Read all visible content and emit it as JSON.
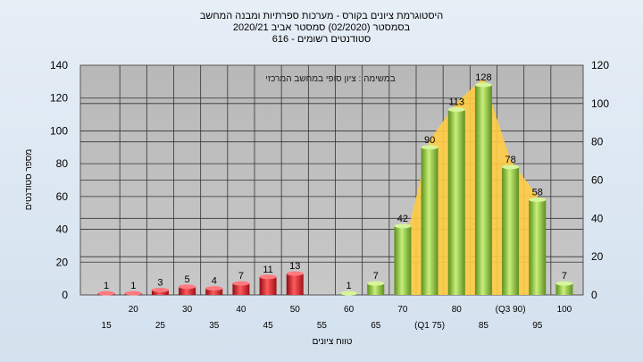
{
  "chart_data": {
    "type": "bar",
    "title_lines": [
      "היסטוגרמת ציונים בקורס - מערכות ספרתיות ומבנה המחשב",
      "בסמסטר  (02/2020)  סמסטר אביב 2020/21",
      "סטודנטים רשומים - 616"
    ],
    "inner_label": "במשימה : ציון סופי במחשב המרכזי",
    "xlabel": "טווח ציונים",
    "ylabel": "מספר סטודנטים",
    "ylim": [
      0,
      140
    ],
    "yticks": [
      0,
      20,
      40,
      60,
      80,
      100,
      120,
      140
    ],
    "right_ylim": [
      0,
      120
    ],
    "right_yticks": [
      0,
      20,
      40,
      60,
      80,
      100,
      120
    ],
    "categories": [
      "15",
      "20",
      "25",
      "30",
      "35",
      "40",
      "45",
      "50",
      "55",
      "60",
      "65",
      "70",
      "75",
      "80",
      "85",
      "90",
      "95",
      "100"
    ],
    "x_tick_labels": [
      "15",
      "20",
      "25",
      "30",
      "35",
      "40",
      "45",
      "50",
      "55",
      "60",
      "65",
      "70",
      "(Q1 75)",
      "80",
      "85",
      "(Q3 90)",
      "95",
      "100"
    ],
    "values": [
      1,
      1,
      3,
      5,
      4,
      7,
      11,
      13,
      0,
      1,
      7,
      42,
      90,
      113,
      128,
      78,
      58,
      7
    ],
    "value_labels": [
      "1",
      "1",
      "3",
      "5",
      "4",
      "7",
      "11",
      "13",
      "",
      "1",
      "7",
      "42",
      "90",
      "113",
      "128",
      "78",
      "58",
      "7"
    ],
    "series_colors": {
      "fail": "#d9232a",
      "pass": "#8cc63f",
      "band": "#ffcc44"
    },
    "fail_threshold": 55,
    "iqr_band": {
      "from": "75",
      "to": "90"
    }
  }
}
